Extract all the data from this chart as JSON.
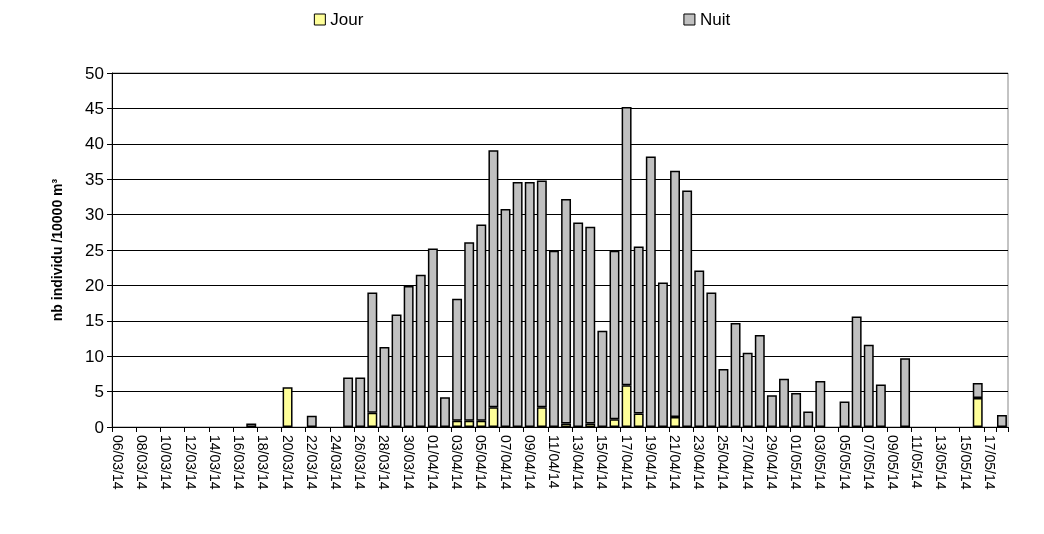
{
  "chart_data": {
    "type": "bar",
    "stacked": true,
    "ylabel": "nb individu /10000 m³",
    "categories": [
      "06/03/14",
      null,
      "08/03/14",
      null,
      "10/03/14",
      null,
      "12/03/14",
      null,
      "14/03/14",
      null,
      "16/03/14",
      null,
      "18/03/14",
      null,
      "20/03/14",
      null,
      "22/03/14",
      null,
      "24/03/14",
      null,
      "26/03/14",
      null,
      "28/03/14",
      null,
      "30/03/14",
      null,
      "01/04/14",
      null,
      "03/04/14",
      null,
      "05/04/14",
      null,
      "07/04/14",
      null,
      "09/04/14",
      null,
      "11/04/14",
      null,
      "13/04/14",
      null,
      "15/04/14",
      null,
      "17/04/14",
      null,
      "19/04/14",
      null,
      "21/04/14",
      null,
      "23/04/14",
      null,
      "25/04/14",
      null,
      "27/04/14",
      null,
      "29/04/14",
      null,
      "01/05/14",
      null,
      "03/05/14",
      null,
      "05/05/14",
      null,
      "07/05/14",
      null,
      "09/05/14",
      null,
      "11/05/14",
      null,
      "13/05/14",
      null,
      "15/05/14",
      null,
      "17/05/14",
      null
    ],
    "series": [
      {
        "name": "Jour",
        "color": "#ffff99",
        "values": [
          0,
          0,
          0,
          0,
          0,
          0,
          0,
          0,
          0,
          0,
          0,
          0,
          0,
          0,
          5.6,
          0,
          0,
          0,
          0,
          0,
          0,
          2.0,
          0,
          0,
          0,
          0,
          0,
          0,
          0.9,
          0.9,
          0.9,
          2.8,
          0,
          0,
          0,
          2.8,
          0,
          0.5,
          0,
          0.5,
          0,
          1.1,
          5.9,
          1.9,
          0,
          0,
          1.4,
          0,
          0,
          0,
          0,
          0,
          0,
          0,
          0,
          0,
          0,
          0,
          0,
          0,
          0,
          0,
          0,
          0,
          0,
          0,
          0,
          0,
          0,
          0,
          0,
          4.1,
          0,
          0
        ]
      },
      {
        "name": "Nuit",
        "color": "#c0c0c0",
        "values": [
          0,
          0,
          0,
          0,
          0,
          0,
          0,
          0,
          0,
          0,
          0,
          0.5,
          0,
          0,
          0,
          0,
          1.6,
          0,
          0,
          7.0,
          7.0,
          17.0,
          11.3,
          15.9,
          19.9,
          21.5,
          25.2,
          4.2,
          17.2,
          25.2,
          27.7,
          36.3,
          30.8,
          34.6,
          34.6,
          32.0,
          24.9,
          31.7,
          28.9,
          27.8,
          13.6,
          23.8,
          39.3,
          23.6,
          38.2,
          20.4,
          34.8,
          33.4,
          22.1,
          19.0,
          8.2,
          14.7,
          10.5,
          13.0,
          4.5,
          6.8,
          4.8,
          2.2,
          6.5,
          0,
          3.6,
          15.6,
          11.6,
          6.0,
          0,
          9.7,
          0,
          0,
          0,
          0,
          0,
          2.1,
          0,
          1.7
        ]
      }
    ],
    "ylim": [
      0,
      50
    ],
    "yticks": [
      0,
      5,
      10,
      15,
      20,
      25,
      30,
      35,
      40,
      45,
      50
    ],
    "grid": "y",
    "legend": "top"
  }
}
